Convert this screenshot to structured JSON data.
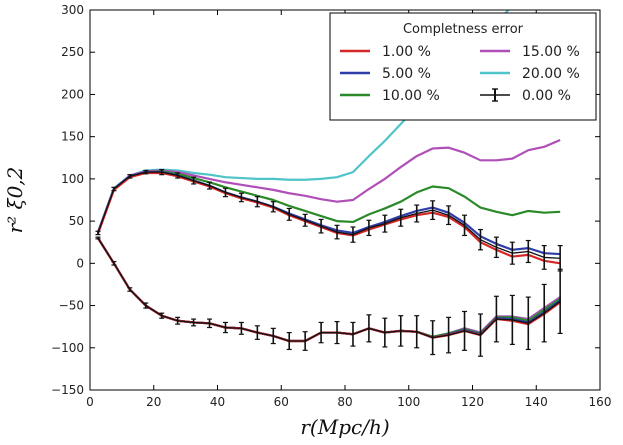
{
  "chart_data": {
    "type": "line",
    "xlabel": "r(Mpc/h)",
    "ylabel": "r² ξ0,2",
    "xlim": [
      0,
      160
    ],
    "ylim": [
      -150,
      300
    ],
    "xticks": [
      0,
      20,
      40,
      60,
      80,
      100,
      120,
      140,
      160
    ],
    "yticks": [
      -150,
      -100,
      -50,
      0,
      50,
      100,
      150,
      200,
      250,
      300
    ],
    "xtick_labels": [
      "0",
      "20",
      "40",
      "60",
      "80",
      "100",
      "120",
      "140",
      "160"
    ],
    "ytick_labels": [
      "−150",
      "−100",
      "−50",
      "0",
      "50",
      "100",
      "150",
      "200",
      "250",
      "300"
    ],
    "grid": false,
    "legend_title": "Completness error",
    "legend_position": "top-right",
    "x": [
      2.5,
      7.5,
      12.5,
      17.5,
      22.5,
      27.5,
      32.5,
      37.5,
      42.5,
      47.5,
      52.5,
      57.5,
      62.5,
      67.5,
      72.5,
      77.5,
      82.5,
      87.5,
      92.5,
      97.5,
      102.5,
      107.5,
      112.5,
      117.5,
      122.5,
      127.5,
      132.5,
      137.5,
      142.5,
      147.5
    ],
    "series": [
      {
        "name": "1.00 %",
        "color": "#d62728",
        "monopole": [
          35,
          87,
          102,
          107,
          107,
          103,
          97,
          91,
          83,
          77,
          72,
          66,
          57,
          50,
          43,
          36,
          33,
          40,
          46,
          52,
          57,
          60,
          55,
          43,
          25,
          16,
          8,
          10,
          3,
          0
        ],
        "quadrupole": [
          30,
          0,
          -31,
          -50,
          -62,
          -68,
          -70,
          -71,
          -76,
          -77,
          -82,
          -86,
          -92,
          -92,
          -82,
          -82,
          -84,
          -77,
          -82,
          -80,
          -81,
          -88,
          -85,
          -80,
          -85,
          -66,
          -68,
          -72,
          -60,
          -46
        ]
      },
      {
        "name": "5.00 %",
        "color": "#2e3da8",
        "monopole": [
          36,
          88,
          103,
          108,
          108,
          104,
          98,
          92,
          84,
          78,
          73,
          67,
          59,
          52,
          45,
          39,
          36,
          43,
          49,
          56,
          62,
          66,
          60,
          48,
          32,
          23,
          16,
          18,
          12,
          11
        ],
        "quadrupole": [
          30,
          0,
          -31,
          -50,
          -62,
          -68,
          -70,
          -71,
          -76,
          -77,
          -82,
          -86,
          -92,
          -92,
          -82,
          -82,
          -84,
          -77,
          -82,
          -80,
          -81,
          -88,
          -84,
          -79,
          -84,
          -65,
          -66,
          -70,
          -58,
          -44
        ]
      },
      {
        "name": "10.00 %",
        "color": "#2a8a2a",
        "monopole": [
          36,
          88,
          103,
          108,
          109,
          106,
          101,
          96,
          90,
          85,
          80,
          75,
          68,
          62,
          56,
          50,
          49,
          58,
          65,
          73,
          84,
          91,
          89,
          79,
          66,
          61,
          57,
          62,
          60,
          61
        ],
        "quadrupole": [
          30,
          0,
          -31,
          -50,
          -62,
          -68,
          -70,
          -71,
          -76,
          -77,
          -82,
          -86,
          -92,
          -92,
          -82,
          -82,
          -84,
          -77,
          -82,
          -80,
          -81,
          -87,
          -83,
          -78,
          -83,
          -64,
          -64,
          -68,
          -55,
          -42
        ]
      },
      {
        "name": "15.00 %",
        "color": "#b04fb8",
        "monopole": [
          37,
          88,
          104,
          109,
          110,
          108,
          104,
          100,
          96,
          93,
          90,
          87,
          83,
          80,
          76,
          73,
          75,
          88,
          100,
          114,
          127,
          136,
          137,
          131,
          122,
          122,
          124,
          134,
          138,
          146
        ],
        "quadrupole": [
          30,
          0,
          -31,
          -50,
          -62,
          -68,
          -70,
          -71,
          -76,
          -77,
          -82,
          -86,
          -92,
          -92,
          -82,
          -82,
          -84,
          -77,
          -82,
          -80,
          -81,
          -87,
          -83,
          -77,
          -82,
          -63,
          -63,
          -66,
          -53,
          -40
        ]
      },
      {
        "name": "20.00 %",
        "color": "#4fc4c8",
        "monopole": [
          37,
          89,
          104,
          110,
          111,
          110,
          107,
          105,
          102,
          101,
          100,
          100,
          99,
          99,
          100,
          102,
          108,
          127,
          145,
          165,
          185,
          205,
          225,
          245,
          265,
          285,
          305,
          325,
          345,
          365
        ],
        "quadrupole": [
          30,
          0,
          -31,
          -50,
          -62,
          -68,
          -70,
          -71,
          -76,
          -77,
          -82,
          -86,
          -92,
          -92,
          -82,
          -82,
          -84,
          -77,
          -82,
          -80,
          -81,
          -87,
          -83,
          -77,
          -82,
          -63,
          -63,
          -66,
          -53,
          -40
        ]
      },
      {
        "name": "0.00 %",
        "color": "#111111",
        "monopole": [
          36,
          88,
          103,
          108,
          108,
          104,
          98,
          92,
          84,
          78,
          73,
          67,
          58,
          51,
          44,
          37,
          34,
          42,
          47,
          54,
          59,
          63,
          57,
          45,
          28,
          19,
          12,
          14,
          7,
          6
        ],
        "monopole_err": [
          2,
          2,
          2,
          2,
          3,
          3,
          4,
          4,
          5,
          5,
          6,
          6,
          7,
          7,
          8,
          8,
          9,
          9,
          10,
          10,
          10,
          11,
          11,
          12,
          12,
          12,
          13,
          13,
          14,
          15
        ],
        "quadrupole": [
          30,
          0,
          -31,
          -50,
          -62,
          -68,
          -70,
          -71,
          -76,
          -77,
          -82,
          -86,
          -92,
          -92,
          -82,
          -82,
          -84,
          -77,
          -82,
          -80,
          -81,
          -88,
          -85,
          -80,
          -85,
          -66,
          -67,
          -71,
          -59,
          -45
        ],
        "quadrupole_err": [
          1,
          2,
          2,
          3,
          3,
          4,
          4,
          5,
          6,
          7,
          8,
          9,
          10,
          11,
          12,
          13,
          14,
          16,
          17,
          18,
          19,
          20,
          21,
          23,
          25,
          27,
          29,
          31,
          34,
          38
        ]
      }
    ]
  }
}
